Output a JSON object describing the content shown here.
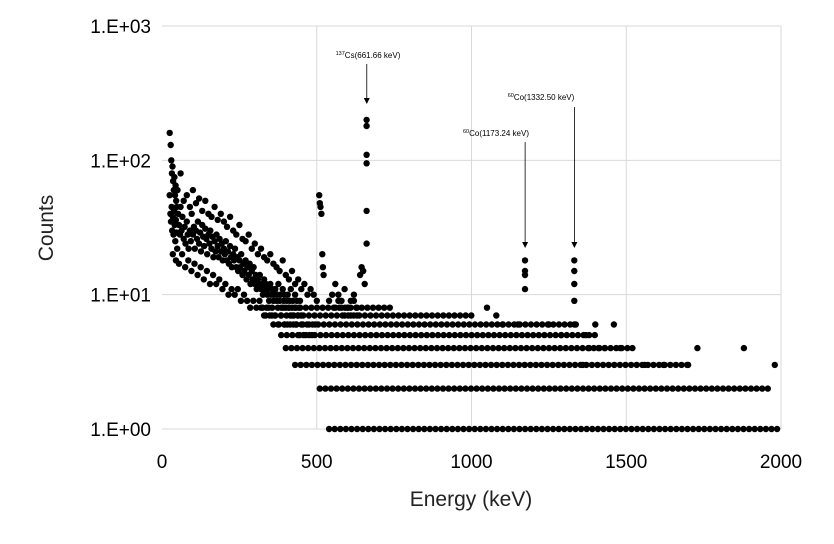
{
  "chart_data": {
    "type": "scatter",
    "title": "",
    "xlabel": "Energy (keV)",
    "ylabel": "Counts",
    "xlim": [
      0,
      2000
    ],
    "ylim": [
      1,
      1000
    ],
    "yscale": "log",
    "grid": true,
    "legend": "none",
    "marker_color": "#000000",
    "x_ticks": [
      {
        "value": 0,
        "label": "0"
      },
      {
        "value": 500,
        "label": "500"
      },
      {
        "value": 1000,
        "label": "1000"
      },
      {
        "value": 1500,
        "label": "1500"
      },
      {
        "value": 2000,
        "label": "2000"
      }
    ],
    "y_ticks": [
      {
        "value": 1,
        "label": "1.E+00"
      },
      {
        "value": 10,
        "label": "1.E+01"
      },
      {
        "value": 100,
        "label": "1.E+02"
      },
      {
        "value": 1000,
        "label": "1.E+03"
      }
    ],
    "annotations": [
      {
        "sup": "137",
        "text": "Cs(661.66 keV)",
        "x": 661.66,
        "y": 200
      },
      {
        "sup": "60",
        "text": "Co(1173.24 keV)",
        "x": 1173.24,
        "y": 18
      },
      {
        "sup": "60",
        "text": "Co(1332.50 keV)",
        "x": 1332.5,
        "y": 18
      }
    ],
    "series": [
      {
        "points": [
          [
            25,
            160
          ],
          [
            28,
            130
          ],
          [
            30,
            100
          ],
          [
            32,
            80
          ],
          [
            34,
            90
          ],
          [
            36,
            70
          ],
          [
            38,
            60
          ],
          [
            40,
            75
          ],
          [
            42,
            55
          ],
          [
            44,
            65
          ],
          [
            46,
            50
          ],
          [
            48,
            45
          ],
          [
            50,
            60
          ],
          [
            25,
            55
          ],
          [
            27,
            40
          ],
          [
            29,
            35
          ],
          [
            31,
            45
          ],
          [
            33,
            30
          ],
          [
            35,
            38
          ],
          [
            37,
            28
          ],
          [
            39,
            42
          ],
          [
            41,
            33
          ],
          [
            43,
            25
          ],
          [
            45,
            36
          ],
          [
            47,
            29
          ],
          [
            49,
            22
          ],
          [
            52,
            40
          ],
          [
            55,
            33
          ],
          [
            58,
            28
          ],
          [
            60,
            45
          ],
          [
            63,
            30
          ],
          [
            66,
            38
          ],
          [
            70,
            26
          ],
          [
            73,
            32
          ],
          [
            76,
            24
          ],
          [
            80,
            35
          ],
          [
            83,
            28
          ],
          [
            86,
            22
          ],
          [
            90,
            30
          ],
          [
            93,
            25
          ],
          [
            96,
            40
          ],
          [
            100,
            28
          ],
          [
            103,
            32
          ],
          [
            106,
            22
          ],
          [
            110,
            30
          ],
          [
            113,
            26
          ],
          [
            116,
            35
          ],
          [
            120,
            24
          ],
          [
            123,
            29
          ],
          [
            126,
            21
          ],
          [
            130,
            33
          ],
          [
            133,
            27
          ],
          [
            136,
            23
          ],
          [
            140,
            31
          ],
          [
            143,
            26
          ],
          [
            146,
            20
          ],
          [
            150,
            28
          ],
          [
            153,
            24
          ],
          [
            156,
            30
          ],
          [
            160,
            22
          ],
          [
            163,
            27
          ],
          [
            166,
            19
          ],
          [
            170,
            25
          ],
          [
            173,
            21
          ],
          [
            176,
            28
          ],
          [
            180,
            23
          ],
          [
            183,
            19
          ],
          [
            186,
            26
          ],
          [
            190,
            21
          ],
          [
            193,
            24
          ],
          [
            196,
            18
          ],
          [
            200,
            22
          ],
          [
            203,
            20
          ],
          [
            206,
            25
          ],
          [
            210,
            18
          ],
          [
            213,
            21
          ],
          [
            216,
            17
          ],
          [
            220,
            23
          ],
          [
            223,
            19
          ],
          [
            226,
            16
          ],
          [
            230,
            20
          ],
          [
            233,
            18
          ],
          [
            236,
            22
          ],
          [
            240,
            16
          ],
          [
            243,
            19
          ],
          [
            246,
            15
          ],
          [
            250,
            18
          ],
          [
            253,
            16
          ],
          [
            256,
            20
          ],
          [
            260,
            14
          ],
          [
            263,
            17
          ],
          [
            266,
            15
          ],
          [
            270,
            18
          ],
          [
            273,
            13
          ],
          [
            276,
            16
          ],
          [
            280,
            14
          ],
          [
            283,
            17
          ],
          [
            286,
            12
          ],
          [
            290,
            15
          ],
          [
            293,
            13
          ],
          [
            296,
            16
          ],
          [
            300,
            12
          ],
          [
            303,
            14
          ],
          [
            306,
            11
          ],
          [
            310,
            13
          ],
          [
            313,
            12
          ],
          [
            316,
            14
          ],
          [
            320,
            11
          ],
          [
            323,
            12
          ],
          [
            326,
            10
          ],
          [
            330,
            13
          ],
          [
            333,
            11
          ],
          [
            336,
            12
          ],
          [
            340,
            10
          ],
          [
            343,
            11
          ],
          [
            346,
            9
          ],
          [
            350,
            12
          ],
          [
            353,
            10
          ],
          [
            356,
            11
          ],
          [
            360,
            9
          ],
          [
            363,
            10
          ],
          [
            366,
            11
          ],
          [
            370,
            9
          ],
          [
            373,
            10
          ],
          [
            376,
            12
          ],
          [
            380,
            9
          ],
          [
            383,
            10
          ],
          [
            386,
            8
          ],
          [
            390,
            11
          ],
          [
            393,
            9
          ],
          [
            396,
            10
          ],
          [
            400,
            8
          ],
          [
            403,
            9
          ],
          [
            406,
            10
          ],
          [
            410,
            8
          ],
          [
            413,
            9
          ],
          [
            416,
            11
          ],
          [
            420,
            8
          ],
          [
            423,
            9
          ],
          [
            426,
            7
          ],
          [
            430,
            10
          ],
          [
            433,
            8
          ],
          [
            436,
            9
          ],
          [
            440,
            7
          ],
          [
            443,
            8
          ],
          [
            446,
            9
          ],
          [
            450,
            7
          ],
          [
            60,
            80
          ],
          [
            70,
            50
          ],
          [
            80,
            55
          ],
          [
            90,
            45
          ],
          [
            100,
            60
          ],
          [
            110,
            48
          ],
          [
            120,
            52
          ],
          [
            130,
            42
          ],
          [
            140,
            50
          ],
          [
            150,
            40
          ],
          [
            160,
            38
          ],
          [
            170,
            45
          ],
          [
            180,
            36
          ],
          [
            190,
            40
          ],
          [
            200,
            35
          ],
          [
            210,
            32
          ],
          [
            220,
            38
          ],
          [
            230,
            30
          ],
          [
            240,
            28
          ],
          [
            250,
            33
          ],
          [
            260,
            26
          ],
          [
            270,
            25
          ],
          [
            280,
            28
          ],
          [
            290,
            22
          ],
          [
            300,
            24
          ],
          [
            310,
            20
          ],
          [
            320,
            22
          ],
          [
            330,
            19
          ],
          [
            340,
            18
          ],
          [
            350,
            20
          ],
          [
            360,
            17
          ],
          [
            370,
            16
          ],
          [
            380,
            15
          ],
          [
            390,
            18
          ],
          [
            400,
            14
          ],
          [
            410,
            13
          ],
          [
            420,
            15
          ],
          [
            430,
            12
          ],
          [
            440,
            13
          ],
          [
            450,
            11
          ],
          [
            460,
            12
          ],
          [
            470,
            10
          ],
          [
            480,
            11
          ],
          [
            490,
            10
          ],
          [
            500,
            9
          ],
          [
            35,
            20
          ],
          [
            45,
            18
          ],
          [
            55,
            17
          ],
          [
            65,
            20
          ],
          [
            75,
            16
          ],
          [
            85,
            18
          ],
          [
            95,
            15
          ],
          [
            105,
            17
          ],
          [
            115,
            14
          ],
          [
            125,
            16
          ],
          [
            135,
            13
          ],
          [
            145,
            15
          ],
          [
            155,
            12
          ],
          [
            165,
            14
          ],
          [
            175,
            12
          ],
          [
            185,
            13
          ],
          [
            195,
            11
          ],
          [
            205,
            12
          ],
          [
            215,
            10
          ],
          [
            225,
            11
          ],
          [
            235,
            10
          ],
          [
            245,
            11
          ],
          [
            255,
            9
          ],
          [
            265,
            10
          ],
          [
            275,
            9
          ],
          [
            285,
            8
          ],
          [
            295,
            9
          ],
          [
            305,
            8
          ],
          [
            315,
            9
          ],
          [
            325,
            8
          ],
          [
            335,
            7
          ],
          [
            345,
            8
          ],
          [
            355,
            7
          ],
          [
            365,
            7
          ],
          [
            375,
            6
          ],
          [
            385,
            7
          ],
          [
            395,
            6
          ],
          [
            405,
            6
          ],
          [
            415,
            7
          ],
          [
            425,
            6
          ],
          [
            435,
            6
          ],
          [
            445,
            5
          ],
          [
            455,
            6
          ],
          [
            465,
            5
          ],
          [
            475,
            6
          ],
          [
            485,
            5
          ],
          [
            495,
            6
          ],
          [
            508,
            55
          ],
          [
            510,
            48
          ],
          [
            512,
            45
          ],
          [
            515,
            40
          ],
          [
            518,
            20
          ],
          [
            520,
            16
          ],
          [
            522,
            14
          ],
          [
            560,
            12
          ],
          [
            570,
            10
          ],
          [
            580,
            9
          ],
          [
            590,
            11
          ],
          [
            600,
            8
          ],
          [
            610,
            9
          ],
          [
            620,
            10
          ],
          [
            630,
            8
          ],
          [
            640,
            14
          ],
          [
            645,
            16
          ],
          [
            650,
            15
          ],
          [
            655,
            12
          ],
          [
            540,
            9
          ],
          [
            550,
            10
          ],
          [
            560,
            8
          ],
          [
            570,
            9
          ],
          [
            580,
            8
          ],
          [
            590,
            7
          ],
          [
            600,
            8
          ],
          [
            610,
            7
          ],
          [
            620,
            9
          ],
          [
            630,
            7
          ],
          [
            661,
            200
          ],
          [
            661,
            180
          ],
          [
            661,
            110
          ],
          [
            661,
            95
          ],
          [
            661,
            42
          ],
          [
            661,
            24
          ],
          [
            1173,
            18
          ],
          [
            1173,
            15
          ],
          [
            1173,
            14
          ],
          [
            1173,
            11
          ],
          [
            1332,
            18
          ],
          [
            1332,
            15
          ],
          [
            1332,
            12
          ],
          [
            1332,
            9
          ],
          [
            1332,
            6
          ],
          [
            1050,
            8
          ],
          [
            1080,
            7
          ],
          [
            1100,
            6
          ],
          [
            1150,
            6
          ],
          [
            1250,
            6
          ],
          [
            1290,
            5
          ],
          [
            1370,
            5
          ],
          [
            1400,
            6
          ],
          [
            1460,
            6
          ],
          [
            1480,
            4
          ],
          [
            1520,
            4
          ],
          [
            1730,
            4
          ],
          [
            1880,
            4
          ],
          [
            1980,
            3
          ],
          [
            1700,
            3
          ],
          [
            1620,
            3
          ],
          [
            1560,
            3
          ],
          [
            1410,
            4
          ],
          [
            1430,
            4
          ],
          [
            1380,
            4
          ],
          [
            1360,
            3
          ]
        ],
        "count_bands": [
          {
            "y": 1,
            "from": 540,
            "to": 2000
          },
          {
            "y": 2,
            "from": 510,
            "to": 1960
          },
          {
            "y": 3,
            "from": 430,
            "to": 1700
          },
          {
            "y": 4,
            "from": 400,
            "to": 1520
          },
          {
            "y": 5,
            "from": 385,
            "to": 1400
          },
          {
            "y": 6,
            "from": 360,
            "to": 1350
          },
          {
            "y": 7,
            "from": 330,
            "to": 1000
          },
          {
            "y": 8,
            "from": 320,
            "to": 750
          }
        ]
      }
    ]
  }
}
